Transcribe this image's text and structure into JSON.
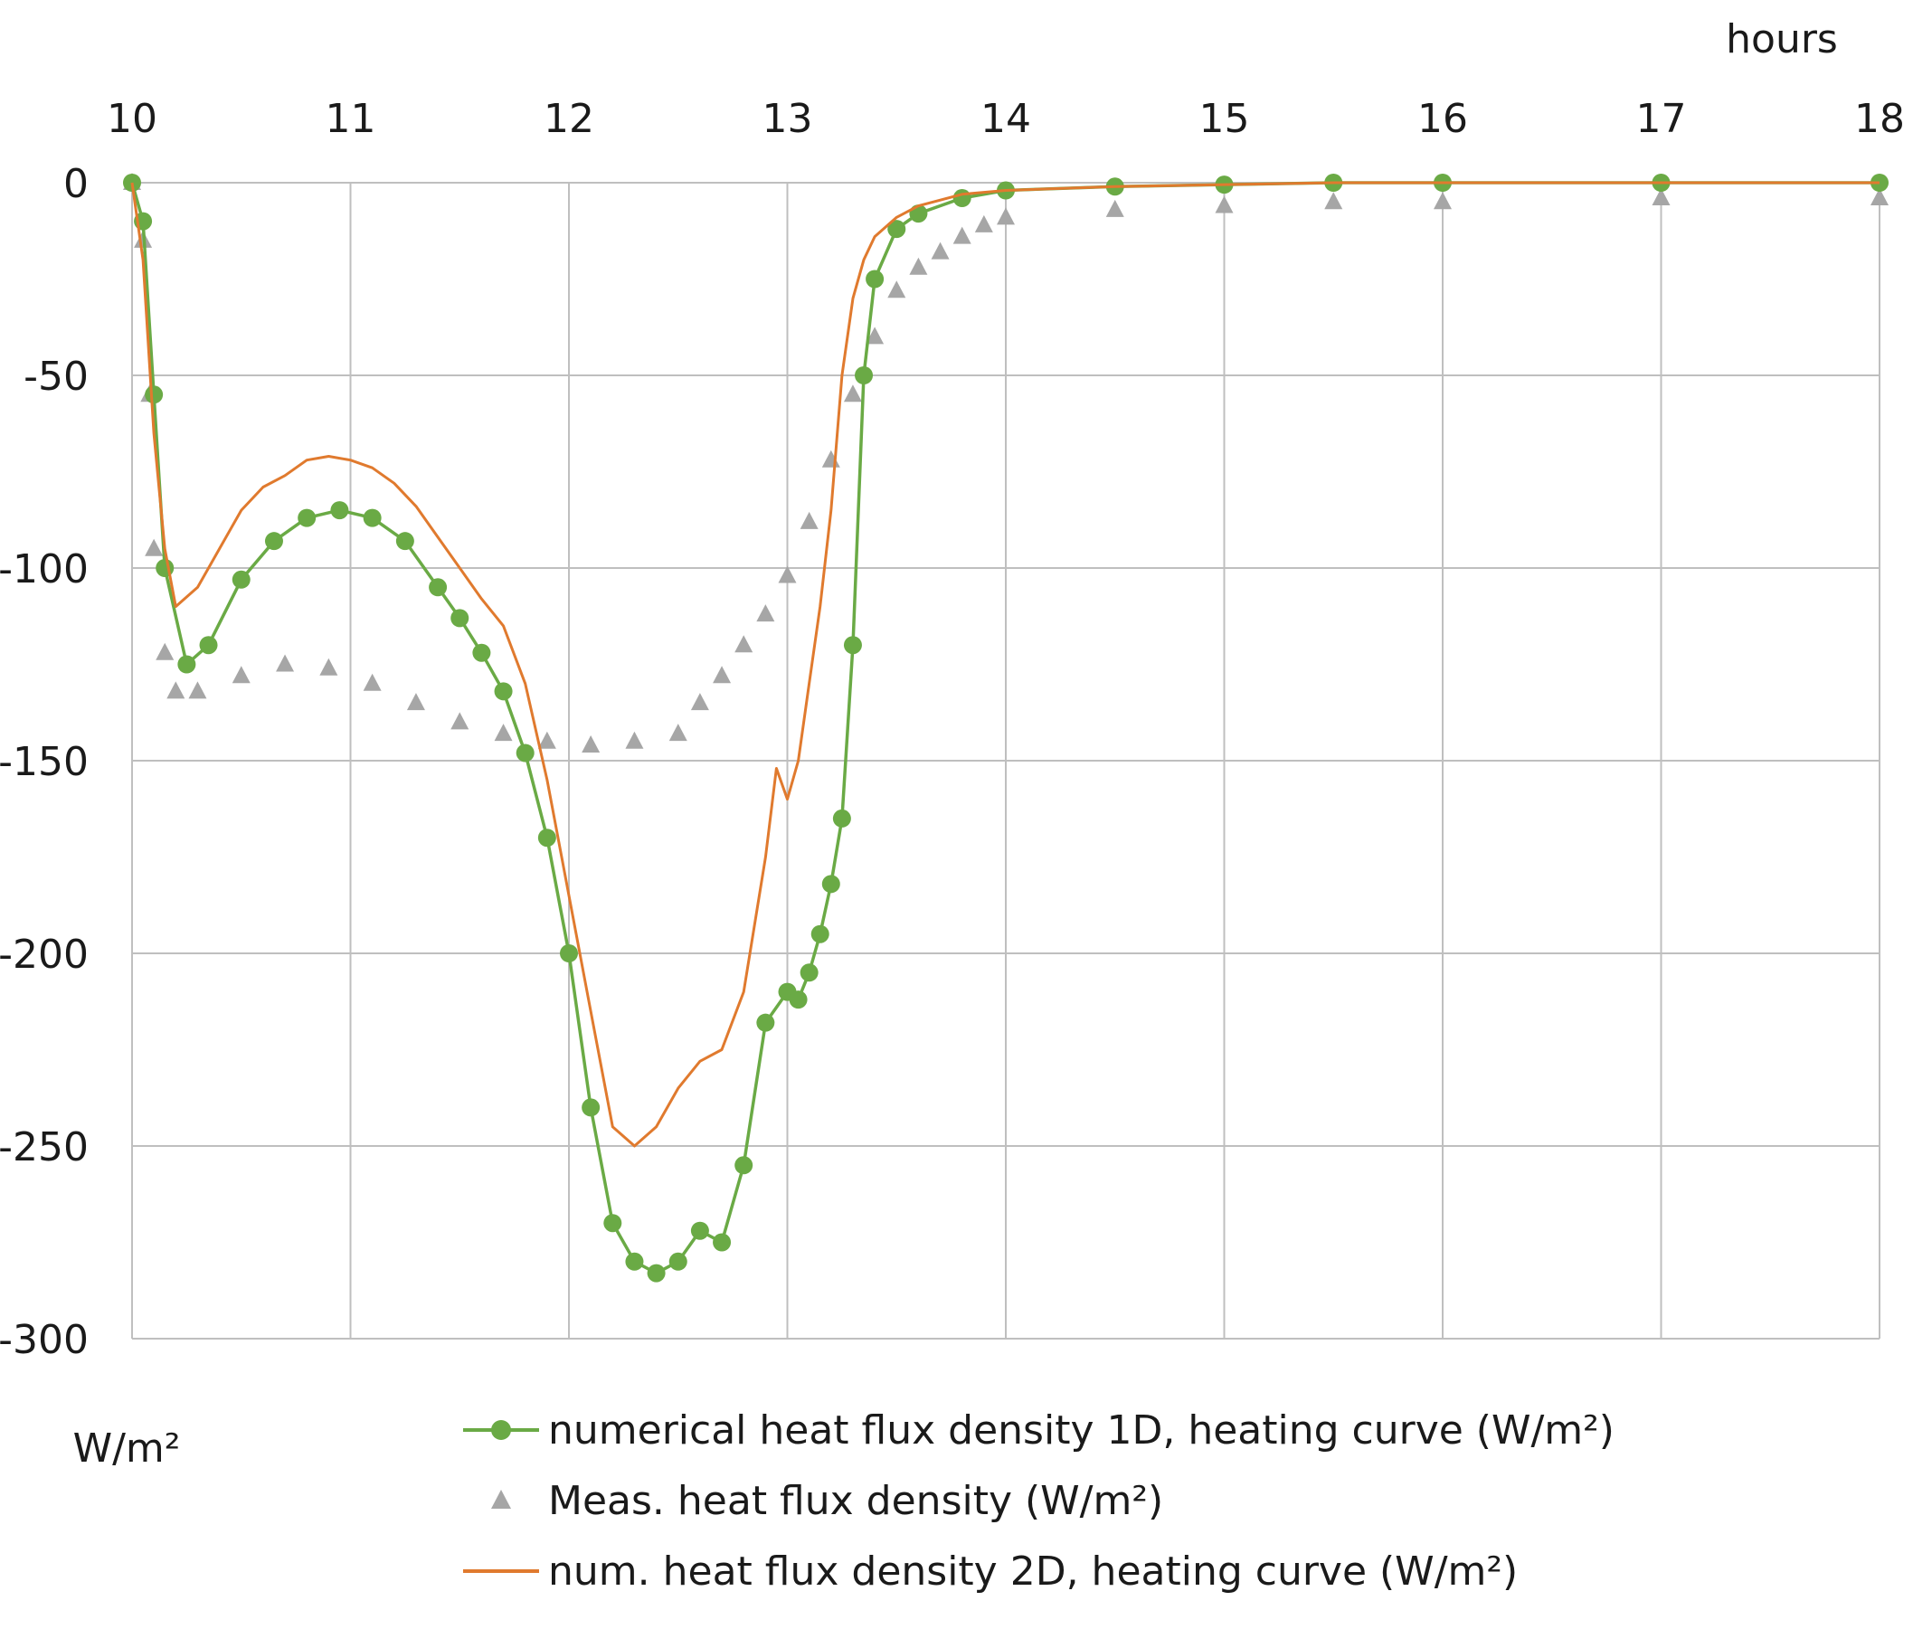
{
  "chart_data": {
    "type": "line",
    "title": "",
    "xlabel": "hours",
    "ylabel": "W/m²",
    "xlim": [
      10,
      18
    ],
    "ylim": [
      -300,
      0
    ],
    "x_ticks": [
      10,
      11,
      12,
      13,
      14,
      15,
      16,
      17,
      18
    ],
    "y_ticks": [
      0,
      -50,
      -100,
      -150,
      -200,
      -250,
      -300
    ],
    "x_axis_position": "top",
    "grid": true,
    "legend_position": "bottom",
    "series": [
      {
        "name": "numerical heat flux density 1D, heating curve (W/m²)",
        "color": "#6aaa45",
        "marker": "circle",
        "line": true,
        "x": [
          10.0,
          10.05,
          10.1,
          10.15,
          10.25,
          10.35,
          10.5,
          10.65,
          10.8,
          10.95,
          11.1,
          11.25,
          11.4,
          11.5,
          11.6,
          11.7,
          11.8,
          11.9,
          12.0,
          12.1,
          12.2,
          12.3,
          12.4,
          12.5,
          12.6,
          12.7,
          12.8,
          12.9,
          13.0,
          13.05,
          13.1,
          13.15,
          13.2,
          13.25,
          13.3,
          13.35,
          13.4,
          13.5,
          13.6,
          13.8,
          14.0,
          14.5,
          15.0,
          15.5,
          16.0,
          17.0,
          18.0
        ],
        "y": [
          0,
          -10,
          -55,
          -100,
          -125,
          -120,
          -103,
          -93,
          -87,
          -85,
          -87,
          -93,
          -105,
          -113,
          -122,
          -132,
          -148,
          -170,
          -200,
          -240,
          -270,
          -280,
          -283,
          -280,
          -272,
          -275,
          -255,
          -218,
          -210,
          -212,
          -205,
          -195,
          -182,
          -165,
          -120,
          -50,
          -25,
          -12,
          -8,
          -4,
          -2,
          -1,
          -0.5,
          0,
          0,
          0,
          0
        ]
      },
      {
        "name": "Meas. heat flux density (W/m²)",
        "color": "#a6a6a6",
        "marker": "triangle",
        "line": false,
        "x": [
          10.0,
          10.05,
          10.08,
          10.1,
          10.15,
          10.2,
          10.3,
          10.5,
          10.7,
          10.9,
          11.1,
          11.3,
          11.5,
          11.7,
          11.9,
          12.1,
          12.3,
          12.5,
          12.6,
          12.7,
          12.8,
          12.9,
          13.0,
          13.1,
          13.2,
          13.3,
          13.4,
          13.5,
          13.6,
          13.7,
          13.8,
          13.9,
          14.0,
          14.5,
          15.0,
          15.5,
          16.0,
          17.0,
          18.0
        ],
        "y": [
          0,
          -15,
          -55,
          -95,
          -122,
          -132,
          -132,
          -128,
          -125,
          -126,
          -130,
          -135,
          -140,
          -143,
          -145,
          -146,
          -145,
          -143,
          -135,
          -128,
          -120,
          -112,
          -102,
          -88,
          -72,
          -55,
          -40,
          -28,
          -22,
          -18,
          -14,
          -11,
          -9,
          -7,
          -6,
          -5,
          -5,
          -4,
          -4
        ]
      },
      {
        "name": "num. heat flux density 2D, heating curve (W/m²)",
        "color": "#e07a2e",
        "marker": "none",
        "line": true,
        "x": [
          10.0,
          10.05,
          10.1,
          10.15,
          10.2,
          10.3,
          10.4,
          10.5,
          10.6,
          10.7,
          10.8,
          10.9,
          11.0,
          11.1,
          11.2,
          11.3,
          11.4,
          11.5,
          11.6,
          11.7,
          11.8,
          11.9,
          12.0,
          12.1,
          12.2,
          12.3,
          12.4,
          12.5,
          12.6,
          12.7,
          12.8,
          12.9,
          12.95,
          13.0,
          13.05,
          13.1,
          13.15,
          13.2,
          13.25,
          13.3,
          13.35,
          13.4,
          13.5,
          13.6,
          13.8,
          14.0,
          14.5,
          15.0,
          15.5,
          16.0,
          17.0,
          18.0
        ],
        "y": [
          0,
          -20,
          -65,
          -95,
          -110,
          -105,
          -95,
          -85,
          -79,
          -76,
          -72,
          -71,
          -72,
          -74,
          -78,
          -84,
          -92,
          -100,
          -108,
          -115,
          -130,
          -155,
          -185,
          -215,
          -245,
          -250,
          -245,
          -235,
          -228,
          -225,
          -210,
          -175,
          -152,
          -160,
          -150,
          -130,
          -110,
          -85,
          -50,
          -30,
          -20,
          -14,
          -9,
          -6,
          -3,
          -2,
          -1,
          -0.5,
          0,
          0,
          0,
          0
        ]
      }
    ]
  }
}
